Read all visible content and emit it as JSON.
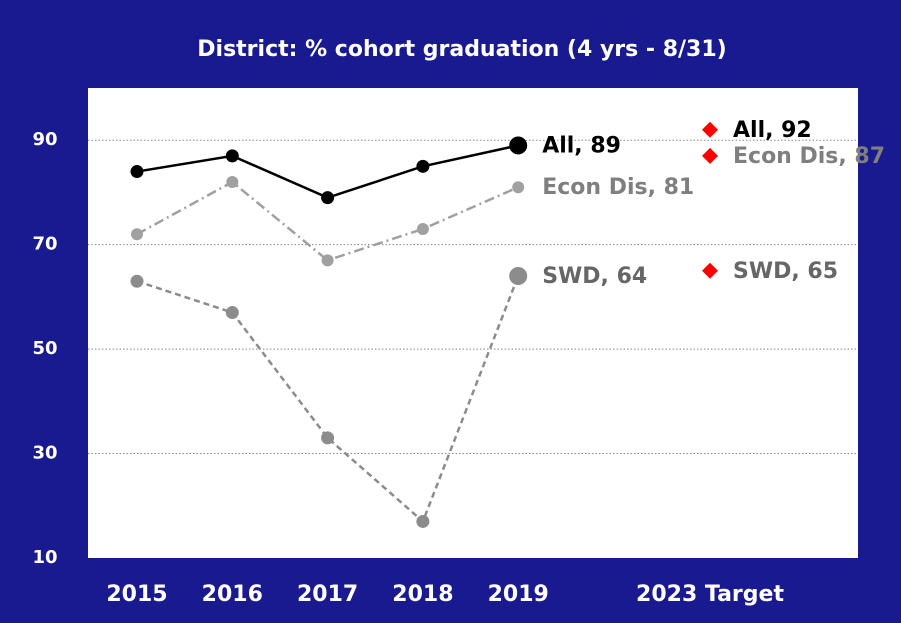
{
  "chart_data": {
    "type": "line",
    "title": "District: % cohort graduation (4 yrs - 8/31)",
    "categories": [
      "2015",
      "2016",
      "2017",
      "2018",
      "2019",
      "2023 Target"
    ],
    "ylim": [
      10,
      100
    ],
    "yticks": [
      10,
      30,
      50,
      70,
      90
    ],
    "grid": true,
    "series": [
      {
        "color": "#000000",
        "label_color": "#000000",
        "dash": "solid",
        "values": [
          84,
          87,
          79,
          85,
          89,
          null
        ],
        "value_labels": [
          null,
          null,
          null,
          null,
          "All, 89",
          null
        ]
      },
      {
        "color": "#a0a0a0",
        "label_color": "#7f7f7f",
        "dash": "dashdot",
        "values": [
          72,
          82,
          67,
          73,
          81,
          null
        ],
        "value_labels": [
          null,
          null,
          null,
          null,
          "Econ Dis, 81",
          null
        ]
      },
      {
        "color": "#8c8c8c",
        "label_color": "#666666",
        "dash": "dashed",
        "values": [
          63,
          57,
          33,
          17,
          64,
          null
        ],
        "value_labels": [
          null,
          null,
          null,
          null,
          "SWD, 64",
          null
        ]
      },
      {
        "color": "#ff0000",
        "label_color": "#000000",
        "marker": "diamond",
        "values": [
          null,
          null,
          null,
          null,
          null,
          92
        ],
        "value_labels": [
          null,
          null,
          null,
          null,
          null,
          "All, 92"
        ]
      },
      {
        "color": "#ff0000",
        "label_color": "#7f7f7f",
        "marker": "diamond",
        "values": [
          null,
          null,
          null,
          null,
          null,
          87
        ],
        "value_labels": [
          null,
          null,
          null,
          null,
          null,
          "Econ Dis, 87"
        ]
      },
      {
        "color": "#ff0000",
        "label_color": "#666666",
        "marker": "diamond",
        "values": [
          null,
          null,
          null,
          null,
          null,
          65
        ],
        "value_labels": [
          null,
          null,
          null,
          null,
          null,
          "SWD, 65"
        ]
      }
    ]
  }
}
